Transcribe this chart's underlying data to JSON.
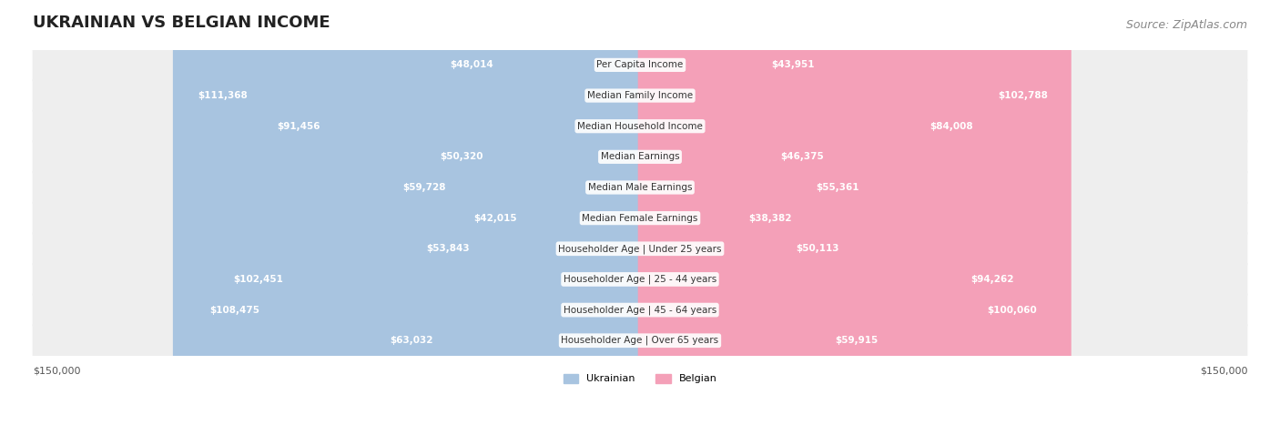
{
  "title": "UKRAINIAN VS BELGIAN INCOME",
  "source": "Source: ZipAtlas.com",
  "categories": [
    "Per Capita Income",
    "Median Family Income",
    "Median Household Income",
    "Median Earnings",
    "Median Male Earnings",
    "Median Female Earnings",
    "Householder Age | Under 25 years",
    "Householder Age | 25 - 44 years",
    "Householder Age | 45 - 64 years",
    "Householder Age | Over 65 years"
  ],
  "ukrainian_values": [
    48014,
    111368,
    91456,
    50320,
    59728,
    42015,
    53843,
    102451,
    108475,
    63032
  ],
  "belgian_values": [
    43951,
    102788,
    84008,
    46375,
    55361,
    38382,
    50113,
    94262,
    100060,
    59915
  ],
  "ukrainian_labels": [
    "$48,014",
    "$111,368",
    "$91,456",
    "$50,320",
    "$59,728",
    "$42,015",
    "$53,843",
    "$102,451",
    "$108,475",
    "$63,032"
  ],
  "belgian_labels": [
    "$43,951",
    "$102,788",
    "$84,008",
    "$46,375",
    "$55,361",
    "$38,382",
    "$50,113",
    "$94,262",
    "$100,060",
    "$59,915"
  ],
  "ukrainian_color": "#a8c4e0",
  "belgian_color": "#f4a0b8",
  "ukrainian_color_dark": "#6b9fd4",
  "belgian_color_dark": "#f07090",
  "max_value": 150000,
  "axis_label_left": "$150,000",
  "axis_label_right": "$150,000",
  "legend_ukrainian": "Ukrainian",
  "legend_belgian": "Belgian",
  "background_color": "#f5f5f5",
  "bar_bg_color": "#e8e8e8",
  "title_fontsize": 13,
  "source_fontsize": 9,
  "bar_height": 0.55,
  "threshold_for_white_label": 30000
}
